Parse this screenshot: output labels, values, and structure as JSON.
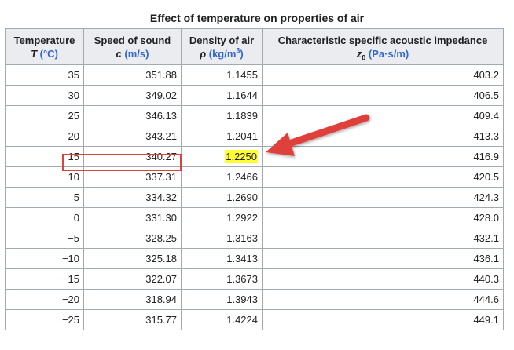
{
  "caption": "Effect of temperature on properties of air",
  "headers": {
    "col1_line1": "Temperature",
    "col1_symbol": "T",
    "col1_unit": "(°C)",
    "col2_line1": "Speed of sound",
    "col2_symbol": "c",
    "col2_unit": "(m/s)",
    "col3_line1": "Density of air",
    "col3_symbol": "ρ",
    "col3_unit_pre": "(kg/m",
    "col3_unit_sup": "3",
    "col3_unit_post": ")",
    "col4_line1": "Characteristic specific acoustic impedance",
    "col4_symbol": "z",
    "col4_symbol_sub": "0",
    "col4_unit": "(Pa·s/m)"
  },
  "rows": [
    {
      "t": "35",
      "c": "351.88",
      "rho": "1.1455",
      "z": "403.2"
    },
    {
      "t": "30",
      "c": "349.02",
      "rho": "1.1644",
      "z": "406.5"
    },
    {
      "t": "25",
      "c": "346.13",
      "rho": "1.1839",
      "z": "409.4"
    },
    {
      "t": "20",
      "c": "343.21",
      "rho": "1.2041",
      "z": "413.3"
    },
    {
      "t": "15",
      "c": "340.27",
      "rho": "1.2250",
      "z": "416.9"
    },
    {
      "t": "10",
      "c": "337.31",
      "rho": "1.2466",
      "z": "420.5"
    },
    {
      "t": "5",
      "c": "334.32",
      "rho": "1.2690",
      "z": "424.3"
    },
    {
      "t": "0",
      "c": "331.30",
      "rho": "1.2922",
      "z": "428.0"
    },
    {
      "t": "−5",
      "c": "328.25",
      "rho": "1.3163",
      "z": "432.1"
    },
    {
      "t": "−10",
      "c": "325.18",
      "rho": "1.3413",
      "z": "436.1"
    },
    {
      "t": "−15",
      "c": "322.07",
      "rho": "1.3673",
      "z": "440.3"
    },
    {
      "t": "−20",
      "c": "318.94",
      "rho": "1.3943",
      "z": "444.6"
    },
    {
      "t": "−25",
      "c": "315.77",
      "rho": "1.4224",
      "z": "449.1"
    }
  ],
  "annotations": {
    "highlight_color": "#ffff33",
    "box_color": "#e0413b",
    "arrow_color": "#e0413b",
    "arrow_icon": "arrow-left-down-icon"
  }
}
